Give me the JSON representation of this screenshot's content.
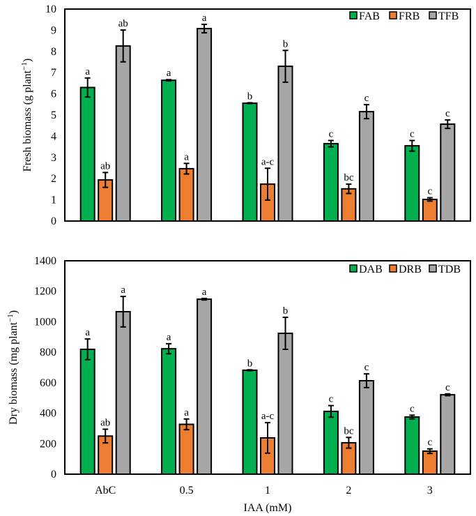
{
  "chart_data": [
    {
      "type": "bar",
      "title": "",
      "xlabel": "",
      "ylabel": "Fresh biomass (g plant",
      "ylabel_sup": "−1",
      "ylabel_close": ")",
      "ylim": [
        0,
        10
      ],
      "yticks": [
        0,
        1,
        2,
        3,
        4,
        5,
        6,
        7,
        8,
        9,
        10
      ],
      "categories": [
        "AbC",
        "0.5",
        "1",
        "2",
        "3"
      ],
      "show_xticklabels": false,
      "legend_position": "top-right",
      "grid": false,
      "series": [
        {
          "name": "FAB",
          "color": "#00B050",
          "values": [
            6.3,
            6.64,
            5.56,
            3.65,
            3.55
          ],
          "errors": [
            0.45,
            0.03,
            0.02,
            0.15,
            0.25
          ],
          "letters": [
            "a",
            "a",
            "b",
            "c",
            "c"
          ]
        },
        {
          "name": "FRB",
          "color": "#ED7D31",
          "values": [
            1.94,
            2.47,
            1.74,
            1.52,
            1.02
          ],
          "errors": [
            0.35,
            0.25,
            0.75,
            0.22,
            0.08
          ],
          "letters": [
            "ab",
            "a",
            "a-c",
            "bc",
            "c"
          ]
        },
        {
          "name": "TFB",
          "color": "#A6A6A6",
          "values": [
            8.26,
            9.08,
            7.3,
            5.16,
            4.57
          ],
          "errors": [
            0.75,
            0.2,
            0.75,
            0.33,
            0.2
          ],
          "letters": [
            "ab",
            "a",
            "b",
            "c",
            "c"
          ]
        }
      ]
    },
    {
      "type": "bar",
      "title": "",
      "xlabel": "IAA (mM)",
      "ylabel": "Dry biomass (mg plant",
      "ylabel_sup": "−1",
      "ylabel_close": ")",
      "ylim": [
        0,
        1400
      ],
      "yticks": [
        0,
        200,
        400,
        600,
        800,
        1000,
        1200,
        1400
      ],
      "categories": [
        "AbC",
        "0.5",
        "1",
        "2",
        "3"
      ],
      "show_xticklabels": true,
      "legend_position": "top-right",
      "grid": false,
      "series": [
        {
          "name": "DAB",
          "color": "#00B050",
          "values": [
            819,
            823,
            682,
            412,
            375
          ],
          "errors": [
            68,
            33,
            3,
            38,
            12
          ],
          "letters": [
            "a",
            "a",
            "b",
            "c",
            "c"
          ]
        },
        {
          "name": "DRB",
          "color": "#ED7D31",
          "values": [
            250,
            327,
            238,
            206,
            151
          ],
          "errors": [
            45,
            35,
            100,
            35,
            15
          ],
          "letters": [
            "ab",
            "a",
            "a-c",
            "bc",
            "c"
          ]
        },
        {
          "name": "TDB",
          "color": "#A6A6A6",
          "values": [
            1066,
            1148,
            924,
            613,
            521
          ],
          "errors": [
            100,
            5,
            105,
            45,
            6
          ],
          "letters": [
            "a",
            "a",
            "b",
            "c",
            "c"
          ]
        }
      ]
    }
  ]
}
